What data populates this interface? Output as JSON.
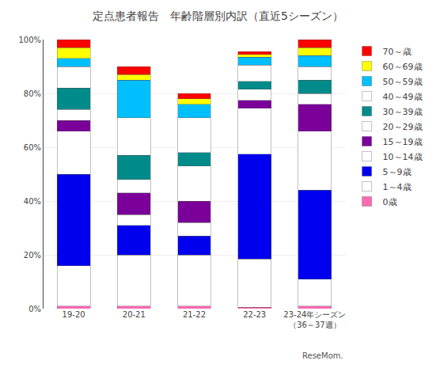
{
  "chart_data": {
    "type": "bar",
    "title": "定点患者報告　年齢階層別内訳（直近5シーズン）",
    "categories": [
      "19-20",
      "20-21",
      "21-22",
      "22-23",
      "23-24年シーズン\n（36～37週）"
    ],
    "series": [
      {
        "name": "0歳",
        "color": "#ff69b4",
        "values": [
          1.0,
          1.0,
          1.0,
          0.5,
          1.0
        ]
      },
      {
        "name": "1～4歳",
        "color": "#ffffff",
        "values": [
          15.0,
          19.0,
          19.0,
          18.0,
          10.0
        ]
      },
      {
        "name": "5～9歳",
        "color": "#0000ee",
        "values": [
          34.0,
          11.0,
          7.0,
          39.0,
          33.0
        ]
      },
      {
        "name": "10～14歳",
        "color": "#ffffff",
        "values": [
          16.0,
          4.0,
          5.0,
          17.0,
          22.0
        ]
      },
      {
        "name": "15～19歳",
        "color": "#7b0099",
        "values": [
          4.0,
          8.0,
          8.0,
          3.0,
          10.0
        ]
      },
      {
        "name": "20～29歳",
        "color": "#ffffff",
        "values": [
          4.0,
          5.0,
          13.0,
          4.0,
          4.0
        ]
      },
      {
        "name": "30～39歳",
        "color": "#008B8B",
        "values": [
          8.0,
          9.0,
          5.0,
          3.0,
          5.0
        ]
      },
      {
        "name": "40～49歳",
        "color": "#ffffff",
        "values": [
          8.0,
          14.0,
          13.0,
          6.0,
          5.0
        ]
      },
      {
        "name": "50～59歳",
        "color": "#00bfff",
        "values": [
          3.0,
          14.0,
          5.0,
          3.0,
          4.0
        ]
      },
      {
        "name": "60～69歳",
        "color": "#ffff00",
        "values": [
          4.0,
          2.0,
          2.0,
          1.0,
          3.0
        ]
      },
      {
        "name": "70～歳",
        "color": "#ff0000",
        "values": [
          3.0,
          3.0,
          2.0,
          1.0,
          3.0
        ]
      }
    ],
    "stacked": true,
    "ylim": [
      0,
      100
    ],
    "yticks": [
      {
        "value": 0,
        "label": "0%"
      },
      {
        "value": 20,
        "label": "20%"
      },
      {
        "value": 40,
        "label": "40%"
      },
      {
        "value": 60,
        "label": "60%"
      },
      {
        "value": 80,
        "label": "80%"
      },
      {
        "value": 100,
        "label": "100%"
      }
    ],
    "grid": true,
    "legend": "right",
    "annotations": [
      "ReseMom."
    ]
  }
}
